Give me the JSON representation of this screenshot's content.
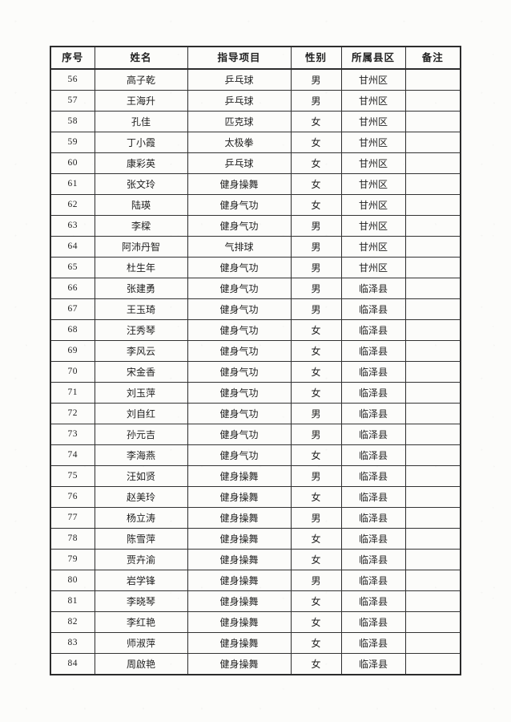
{
  "page": {
    "kind": "scanned-roster-table",
    "background_color": "#fcfcfa",
    "ink_color": "#1f1f1f",
    "border_color": "#2d2d2d"
  },
  "table": {
    "columns": [
      "序号",
      "姓名",
      "指导项目",
      "性别",
      "所属县区",
      "备注"
    ],
    "rows": [
      {
        "no": "56",
        "name": "高子乾",
        "project": "乒乓球",
        "gender": "男",
        "county": "甘州区",
        "note": ""
      },
      {
        "no": "57",
        "name": "王海升",
        "project": "乒乓球",
        "gender": "男",
        "county": "甘州区",
        "note": ""
      },
      {
        "no": "58",
        "name": "孔佳",
        "project": "匹克球",
        "gender": "女",
        "county": "甘州区",
        "note": ""
      },
      {
        "no": "59",
        "name": "丁小霞",
        "project": "太极拳",
        "gender": "女",
        "county": "甘州区",
        "note": ""
      },
      {
        "no": "60",
        "name": "康彩英",
        "project": "乒乓球",
        "gender": "女",
        "county": "甘州区",
        "note": ""
      },
      {
        "no": "61",
        "name": "张文玲",
        "project": "健身操舞",
        "gender": "女",
        "county": "甘州区",
        "note": ""
      },
      {
        "no": "62",
        "name": "陆瑛",
        "project": "健身气功",
        "gender": "女",
        "county": "甘州区",
        "note": ""
      },
      {
        "no": "63",
        "name": "李樑",
        "project": "健身气功",
        "gender": "男",
        "county": "甘州区",
        "note": ""
      },
      {
        "no": "64",
        "name": "阿沛丹智",
        "project": "气排球",
        "gender": "男",
        "county": "甘州区",
        "note": ""
      },
      {
        "no": "65",
        "name": "杜生年",
        "project": "健身气功",
        "gender": "男",
        "county": "甘州区",
        "note": ""
      },
      {
        "no": "66",
        "name": "张建勇",
        "project": "健身气功",
        "gender": "男",
        "county": "临泽县",
        "note": ""
      },
      {
        "no": "67",
        "name": "王玉琦",
        "project": "健身气功",
        "gender": "男",
        "county": "临泽县",
        "note": ""
      },
      {
        "no": "68",
        "name": "汪秀琴",
        "project": "健身气功",
        "gender": "女",
        "county": "临泽县",
        "note": ""
      },
      {
        "no": "69",
        "name": "李风云",
        "project": "健身气功",
        "gender": "女",
        "county": "临泽县",
        "note": ""
      },
      {
        "no": "70",
        "name": "宋金香",
        "project": "健身气功",
        "gender": "女",
        "county": "临泽县",
        "note": ""
      },
      {
        "no": "71",
        "name": "刘玉萍",
        "project": "健身气功",
        "gender": "女",
        "county": "临泽县",
        "note": ""
      },
      {
        "no": "72",
        "name": "刘自红",
        "project": "健身气功",
        "gender": "男",
        "county": "临泽县",
        "note": ""
      },
      {
        "no": "73",
        "name": "孙元吉",
        "project": "健身气功",
        "gender": "男",
        "county": "临泽县",
        "note": ""
      },
      {
        "no": "74",
        "name": "李海燕",
        "project": "健身气功",
        "gender": "女",
        "county": "临泽县",
        "note": ""
      },
      {
        "no": "75",
        "name": "汪如贤",
        "project": "健身操舞",
        "gender": "男",
        "county": "临泽县",
        "note": ""
      },
      {
        "no": "76",
        "name": "赵美玲",
        "project": "健身操舞",
        "gender": "女",
        "county": "临泽县",
        "note": ""
      },
      {
        "no": "77",
        "name": "杨立涛",
        "project": "健身操舞",
        "gender": "男",
        "county": "临泽县",
        "note": ""
      },
      {
        "no": "78",
        "name": "陈雪萍",
        "project": "健身操舞",
        "gender": "女",
        "county": "临泽县",
        "note": ""
      },
      {
        "no": "79",
        "name": "贾卉渝",
        "project": "健身操舞",
        "gender": "女",
        "county": "临泽县",
        "note": ""
      },
      {
        "no": "80",
        "name": "岩学锋",
        "project": "健身操舞",
        "gender": "男",
        "county": "临泽县",
        "note": ""
      },
      {
        "no": "81",
        "name": "李晓琴",
        "project": "健身操舞",
        "gender": "女",
        "county": "临泽县",
        "note": ""
      },
      {
        "no": "82",
        "name": "李红艳",
        "project": "健身操舞",
        "gender": "女",
        "county": "临泽县",
        "note": ""
      },
      {
        "no": "83",
        "name": "师淑萍",
        "project": "健身操舞",
        "gender": "女",
        "county": "临泽县",
        "note": ""
      },
      {
        "no": "84",
        "name": "周啟艳",
        "project": "健身操舞",
        "gender": "女",
        "county": "临泽县",
        "note": ""
      }
    ]
  }
}
